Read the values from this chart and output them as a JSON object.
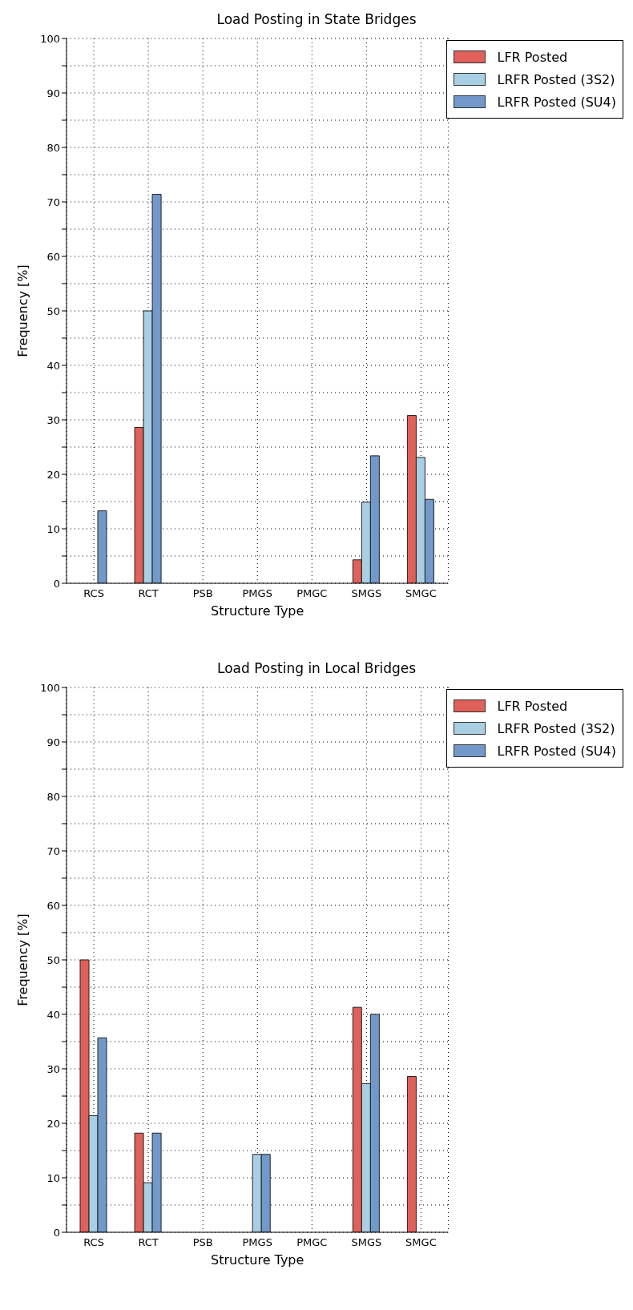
{
  "chart_data": [
    {
      "type": "bar",
      "title": "Load Posting in State Bridges",
      "xlabel": "Structure Type",
      "ylabel": "Frequency [%]",
      "categories": [
        "RCS",
        "RCT",
        "PSB",
        "PMGS",
        "PMGC",
        "SMGS",
        "SMGC"
      ],
      "series": [
        {
          "name": "LFR Posted",
          "color": "#e0605a",
          "values": [
            0,
            28.6,
            0,
            0,
            0,
            4.3,
            30.8
          ]
        },
        {
          "name": "LRFR Posted (3S2)",
          "color": "#a8cfe3",
          "values": [
            0,
            50,
            0,
            0,
            0,
            14.9,
            23.1
          ]
        },
        {
          "name": "LRFR Posted (SU4)",
          "color": "#7299ca",
          "values": [
            13.3,
            71.4,
            0,
            0,
            0,
            23.4,
            15.4
          ]
        }
      ],
      "ylim": [
        0,
        100
      ],
      "yticks": [
        0,
        {
          "value": 5,
          "label": null
        },
        10,
        {
          "value": 15,
          "label": null
        },
        20,
        {
          "value": 25,
          "label": null
        },
        30,
        {
          "value": 35,
          "label": null
        },
        40,
        {
          "value": 45,
          "label": null
        },
        50,
        {
          "value": 55,
          "label": null
        },
        60,
        {
          "value": 65,
          "label": null
        },
        70,
        {
          "value": 75,
          "label": null
        },
        80,
        {
          "value": 85,
          "label": null
        },
        90,
        {
          "value": 95,
          "label": null
        },
        100
      ],
      "grid": true,
      "legend": "top right"
    },
    {
      "type": "bar",
      "title": "Load Posting in Local Bridges",
      "xlabel": "Structure Type",
      "ylabel": "Frequency [%]",
      "categories": [
        "RCS",
        "RCT",
        "PSB",
        "PMGS",
        "PMGC",
        "SMGS",
        "SMGC"
      ],
      "series": [
        {
          "name": "LFR Posted",
          "color": "#e0605a",
          "values": [
            50,
            18.2,
            0,
            0,
            0,
            41.3,
            28.6
          ]
        },
        {
          "name": "LRFR Posted (3S2)",
          "color": "#a8cfe3",
          "values": [
            21.4,
            9.1,
            0,
            14.3,
            0,
            27.3,
            0
          ]
        },
        {
          "name": "LRFR Posted (SU4)",
          "color": "#7299ca",
          "values": [
            35.7,
            18.2,
            0,
            14.3,
            0,
            40,
            0
          ]
        }
      ],
      "ylim": [
        0,
        100
      ],
      "yticks": [
        0,
        {
          "value": 5,
          "label": null
        },
        10,
        {
          "value": 15,
          "label": null
        },
        20,
        {
          "value": 25,
          "label": null
        },
        30,
        {
          "value": 35,
          "label": null
        },
        40,
        {
          "value": 45,
          "label": null
        },
        50,
        {
          "value": 55,
          "label": null
        },
        60,
        {
          "value": 65,
          "label": null
        },
        70,
        {
          "value": 75,
          "label": null
        },
        80,
        {
          "value": 85,
          "label": null
        },
        90,
        {
          "value": 95,
          "label": null
        },
        100
      ],
      "grid": true,
      "legend": "top right"
    }
  ]
}
